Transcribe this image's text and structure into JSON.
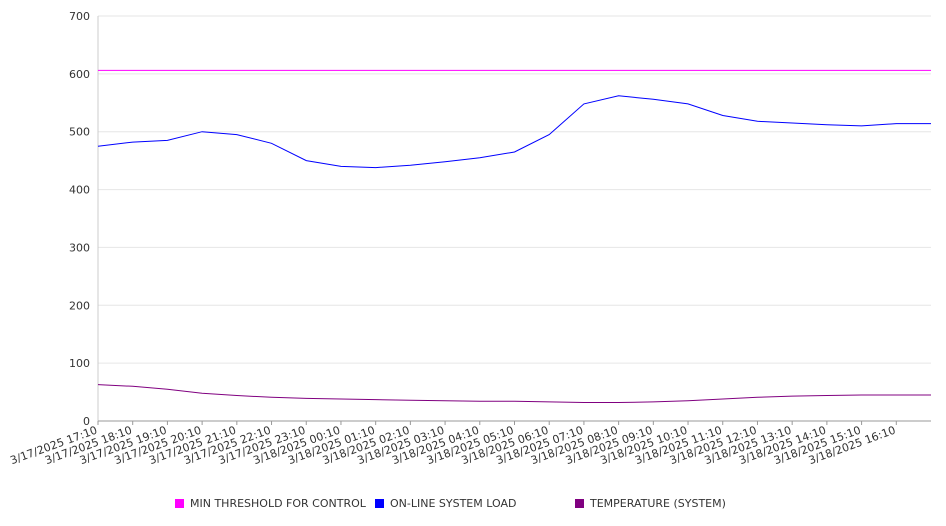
{
  "chart_data": {
    "type": "line",
    "title": "",
    "xlabel": "",
    "ylabel": "",
    "ylim": [
      0,
      700
    ],
    "yticks": [
      0,
      100,
      200,
      300,
      400,
      500,
      600,
      700
    ],
    "grid": true,
    "legend_position": "bottom",
    "x": [
      "3/17/2025 17:10",
      "3/17/2025 18:10",
      "3/17/2025 19:10",
      "3/17/2025 20:10",
      "3/17/2025 21:10",
      "3/17/2025 22:10",
      "3/17/2025 23:10",
      "3/18/2025 00:10",
      "3/18/2025 01:10",
      "3/18/2025 02:10",
      "3/18/2025 03:10",
      "3/18/2025 04:10",
      "3/18/2025 05:10",
      "3/18/2025 06:10",
      "3/18/2025 07:10",
      "3/18/2025 08:10",
      "3/18/2025 09:10",
      "3/18/2025 10:10",
      "3/18/2025 11:10",
      "3/18/2025 12:10",
      "3/18/2025 13:10",
      "3/18/2025 14:10",
      "3/18/2025 15:10",
      "3/18/2025 16:10"
    ],
    "series": [
      {
        "name": "MIN THRESHOLD FOR CONTROL",
        "color": "#ff00ff",
        "values": [
          606,
          606,
          606,
          606,
          606,
          606,
          606,
          606,
          606,
          606,
          606,
          606,
          606,
          606,
          606,
          606,
          606,
          606,
          606,
          606,
          606,
          606,
          606,
          606
        ]
      },
      {
        "name": "ON-LINE SYSTEM LOAD",
        "color": "#0000ff",
        "values": [
          475,
          482,
          485,
          500,
          495,
          480,
          450,
          440,
          438,
          442,
          448,
          455,
          465,
          495,
          548,
          562,
          556,
          548,
          528,
          518,
          515,
          512,
          510,
          514
        ]
      },
      {
        "name": "TEMPERATURE (SYSTEM)",
        "color": "#800080",
        "values": [
          63,
          60,
          55,
          48,
          44,
          41,
          39,
          38,
          37,
          36,
          35,
          34,
          34,
          33,
          32,
          32,
          33,
          35,
          38,
          41,
          43,
          44,
          45,
          45
        ]
      }
    ],
    "x_end": "3/18/2025 17:00"
  }
}
